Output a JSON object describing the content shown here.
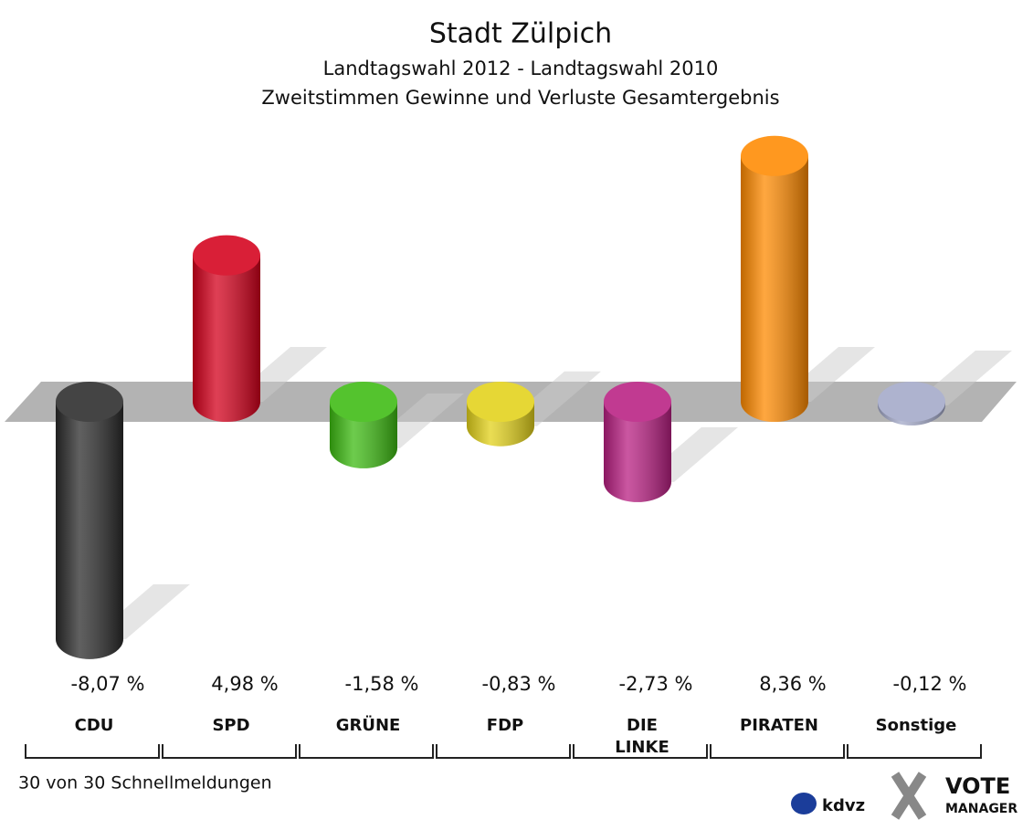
{
  "chart_data": {
    "type": "bar",
    "title": "Stadt Zülpich",
    "subtitle": [
      "Landtagswahl 2012 - Landtagswahl 2010",
      "Zweitstimmen Gewinne und Verluste Gesamtergebnis"
    ],
    "categories": [
      "CDU",
      "SPD",
      "GRÜNE",
      "FDP",
      "DIE LINKE",
      "PIRATEN",
      "Sonstige"
    ],
    "values": [
      -8.07,
      4.98,
      -1.58,
      -0.83,
      -2.73,
      8.36,
      -0.12
    ],
    "value_labels": [
      "-8,07 %",
      "4,98 %",
      "-1,58 %",
      "-0,83 %",
      "-2,73 %",
      "8,36 %",
      "-0,12 %"
    ],
    "colors": [
      "#2b2b2b",
      "#d4001c",
      "#3dbb12",
      "#e3d21a",
      "#b91f82",
      "#ff8a00",
      "#a3a9c9"
    ],
    "footnote": "30 von 30 Schnellmeldungen",
    "logo": [
      "kdvz",
      "VOTE",
      "MANAGER"
    ]
  }
}
